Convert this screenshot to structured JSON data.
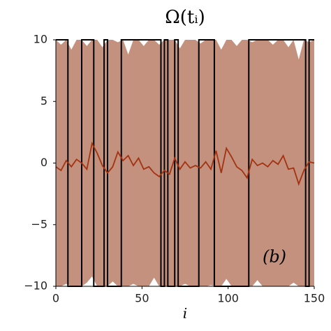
{
  "chart_data": {
    "type": "line",
    "title": "Ω(tᵢ)",
    "xlabel": "i",
    "annotation": "(b)",
    "xlim": [
      0,
      150
    ],
    "ylim": [
      -10,
      10
    ],
    "xticks": [
      0,
      50,
      100,
      150
    ],
    "yticks": [
      {
        "value": -10,
        "label": "−10"
      },
      {
        "value": -5,
        "label": "−5"
      },
      0,
      5,
      10
    ],
    "x": [
      0,
      3,
      6,
      9,
      12,
      15,
      18,
      21,
      24,
      27,
      30,
      33,
      36,
      39,
      42,
      45,
      48,
      51,
      54,
      57,
      60,
      63,
      66,
      69,
      72,
      75,
      78,
      81,
      84,
      87,
      90,
      93,
      96,
      99,
      102,
      105,
      108,
      111,
      114,
      117,
      120,
      123,
      126,
      129,
      132,
      135,
      138,
      141,
      144,
      147,
      150
    ],
    "band": {
      "color": "#c4917f",
      "upper": [
        10,
        9.6,
        10,
        9.2,
        10,
        10,
        9.5,
        10,
        10,
        9.4,
        10,
        10,
        9.8,
        10,
        8.8,
        10,
        10,
        9.5,
        10,
        10,
        9.6,
        10,
        10,
        10,
        9.3,
        10,
        10,
        10,
        9.7,
        10,
        10,
        10,
        9.2,
        10,
        10,
        9.5,
        10,
        10,
        9.8,
        10,
        10,
        10,
        9.6,
        10,
        10,
        9.4,
        10,
        8.4,
        10,
        9.8,
        10
      ],
      "lower": [
        -10,
        -10,
        -9.8,
        -10,
        -10,
        -10,
        -9.7,
        -9.2,
        -10,
        -10,
        -10,
        -9.6,
        -10,
        -10,
        -10,
        -9.8,
        -10,
        -10,
        -10,
        -9.3,
        -10,
        -10,
        -10,
        -10,
        -10,
        -9.8,
        -10,
        -10,
        -10,
        -10,
        -9.9,
        -10,
        -10,
        -9.4,
        -10,
        -10,
        -10,
        -10,
        -10,
        -9.5,
        -10,
        -10,
        -10,
        -10,
        -10,
        -10,
        -9.7,
        -10,
        -10,
        -10,
        -10
      ]
    },
    "mean": {
      "color": "#a3320f",
      "values": [
        -0.3,
        -0.6,
        0.2,
        -0.3,
        0.3,
        0.0,
        -0.5,
        1.6,
        0.8,
        -0.2,
        -0.8,
        -0.3,
        0.9,
        0.2,
        0.6,
        -0.2,
        0.4,
        -0.5,
        -0.3,
        -0.8,
        -1.1,
        -0.6,
        -0.9,
        0.4,
        -0.5,
        0.1,
        -0.4,
        -0.2,
        -0.4,
        0.1,
        -0.5,
        1.0,
        -0.8,
        1.2,
        0.5,
        -0.3,
        -0.6,
        -1.2,
        0.3,
        -0.2,
        0.0,
        -0.3,
        0.2,
        -0.1,
        0.6,
        -0.5,
        -0.4,
        -1.7,
        -0.6,
        0.1,
        0.0
      ]
    },
    "step": {
      "color": "#000000",
      "x": [
        0,
        7,
        7,
        15,
        15,
        22,
        22,
        28,
        28,
        30,
        30,
        38,
        38,
        61,
        61,
        63,
        63,
        65,
        65,
        69,
        69,
        71,
        71,
        83,
        83,
        92,
        92,
        112,
        112,
        145,
        145,
        147,
        147,
        150
      ],
      "values": [
        10,
        10,
        -10,
        -10,
        10,
        10,
        -10,
        -10,
        10,
        10,
        -10,
        -10,
        10,
        10,
        -10,
        -10,
        10,
        10,
        -10,
        -10,
        10,
        10,
        -10,
        -10,
        10,
        10,
        -10,
        -10,
        10,
        10,
        -10,
        -10,
        10,
        10
      ]
    }
  }
}
